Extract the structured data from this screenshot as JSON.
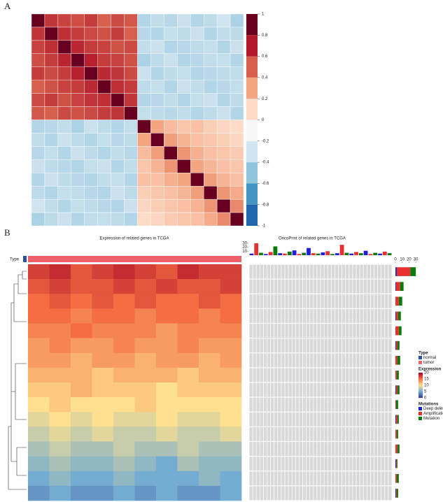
{
  "panel_labels": [
    "A",
    "B"
  ],
  "chart_data": [
    {
      "type": "correlation",
      "matrix": [
        [
          1,
          0.72,
          0.68,
          0.65,
          0.7,
          0.6,
          0.66,
          0.62,
          -0.3,
          -0.25,
          -0.28,
          -0.22,
          -0.3,
          -0.26,
          -0.2,
          -0.32
        ],
        [
          0.72,
          1,
          0.74,
          0.7,
          0.66,
          0.64,
          0.7,
          0.6,
          -0.28,
          -0.3,
          -0.24,
          -0.26,
          -0.22,
          -0.3,
          -0.25,
          -0.27
        ],
        [
          0.68,
          0.74,
          1,
          0.76,
          0.7,
          0.68,
          0.64,
          0.66,
          -0.25,
          -0.22,
          -0.3,
          -0.28,
          -0.26,
          -0.24,
          -0.3,
          -0.22
        ],
        [
          0.65,
          0.7,
          0.76,
          1,
          0.78,
          0.7,
          0.68,
          0.64,
          -0.32,
          -0.26,
          -0.22,
          -0.3,
          -0.28,
          -0.25,
          -0.24,
          -0.3
        ],
        [
          0.7,
          0.66,
          0.7,
          0.78,
          1,
          0.75,
          0.72,
          0.66,
          -0.22,
          -0.3,
          -0.26,
          -0.24,
          -0.3,
          -0.28,
          -0.26,
          -0.25
        ],
        [
          0.6,
          0.64,
          0.68,
          0.7,
          0.75,
          1,
          0.74,
          0.7,
          -0.26,
          -0.24,
          -0.3,
          -0.22,
          -0.25,
          -0.3,
          -0.28,
          -0.24
        ],
        [
          0.66,
          0.7,
          0.64,
          0.68,
          0.72,
          0.74,
          1,
          0.72,
          -0.3,
          -0.28,
          -0.25,
          -0.3,
          -0.24,
          -0.22,
          -0.3,
          -0.26
        ],
        [
          0.62,
          0.6,
          0.66,
          0.64,
          0.66,
          0.7,
          0.72,
          1,
          -0.24,
          -0.26,
          -0.28,
          -0.25,
          -0.3,
          -0.26,
          -0.22,
          -0.3
        ],
        [
          -0.3,
          -0.28,
          -0.25,
          -0.32,
          -0.22,
          -0.26,
          -0.3,
          -0.24,
          1,
          0.4,
          0.32,
          0.28,
          0.3,
          0.25,
          0.22,
          0.2
        ],
        [
          -0.25,
          -0.3,
          -0.22,
          -0.26,
          -0.3,
          -0.24,
          -0.28,
          -0.26,
          0.4,
          1,
          0.42,
          0.35,
          0.3,
          0.28,
          0.25,
          0.22
        ],
        [
          -0.28,
          -0.24,
          -0.3,
          -0.22,
          -0.26,
          -0.3,
          -0.25,
          -0.28,
          0.32,
          0.42,
          1,
          0.45,
          0.36,
          0.3,
          0.28,
          0.26
        ],
        [
          -0.22,
          -0.26,
          -0.28,
          -0.3,
          -0.24,
          -0.22,
          -0.3,
          -0.25,
          0.28,
          0.35,
          0.45,
          1,
          0.4,
          0.34,
          0.3,
          0.28
        ],
        [
          -0.3,
          -0.22,
          -0.26,
          -0.28,
          -0.3,
          -0.25,
          -0.24,
          -0.3,
          0.3,
          0.3,
          0.36,
          0.4,
          1,
          0.42,
          0.35,
          0.3
        ],
        [
          -0.26,
          -0.3,
          -0.24,
          -0.25,
          -0.28,
          -0.3,
          -0.22,
          -0.26,
          0.25,
          0.28,
          0.3,
          0.34,
          0.42,
          1,
          0.45,
          0.38
        ],
        [
          -0.2,
          -0.25,
          -0.3,
          -0.24,
          -0.26,
          -0.28,
          -0.3,
          -0.22,
          0.22,
          0.25,
          0.28,
          0.3,
          0.35,
          0.45,
          1,
          0.48
        ],
        [
          -0.32,
          -0.27,
          -0.22,
          -0.3,
          -0.25,
          -0.24,
          -0.26,
          -0.3,
          0.2,
          0.22,
          0.26,
          0.28,
          0.3,
          0.38,
          0.48,
          1
        ]
      ],
      "clim": [
        -1,
        1
      ],
      "cticks": [
        1,
        0.8,
        0.6,
        0.4,
        0.2,
        0,
        -0.2,
        -0.4,
        -0.6,
        -0.8,
        -1
      ],
      "colors": [
        "#67001f",
        "#b2182b",
        "#d6604d",
        "#f4a582",
        "#fddbc7",
        "#f7f7f7",
        "#d1e5f0",
        "#92c5de",
        "#4393c3",
        "#2166ac",
        "#053061"
      ]
    },
    {
      "type": "expression",
      "title": "Expression of related genes in TCGA",
      "type_label": "Type",
      "matrix": [
        [
          17,
          18,
          16,
          17,
          18,
          17,
          16,
          18,
          17,
          17
        ],
        [
          16,
          17,
          16,
          16,
          17,
          16,
          17,
          16,
          16,
          17
        ],
        [
          15,
          16,
          15,
          16,
          15,
          16,
          15,
          15,
          16,
          15
        ],
        [
          15,
          15,
          14,
          15,
          15,
          14,
          15,
          15,
          14,
          15
        ],
        [
          14,
          14,
          15,
          14,
          14,
          14,
          13,
          14,
          14,
          14
        ],
        [
          13,
          14,
          13,
          13,
          14,
          13,
          13,
          14,
          13,
          13
        ],
        [
          13,
          13,
          12,
          13,
          13,
          12,
          13,
          13,
          12,
          13
        ],
        [
          12,
          12,
          12,
          11,
          12,
          12,
          12,
          11,
          12,
          12
        ],
        [
          11,
          11,
          12,
          11,
          11,
          11,
          10,
          11,
          11,
          11
        ],
        [
          10,
          11,
          10,
          10,
          10,
          11,
          10,
          10,
          10,
          10
        ],
        [
          9,
          10,
          9,
          10,
          9,
          9,
          10,
          9,
          9,
          10
        ],
        [
          8,
          9,
          8,
          9,
          8,
          8,
          9,
          8,
          8,
          9
        ],
        [
          7,
          8,
          7,
          7,
          8,
          7,
          7,
          8,
          7,
          7
        ],
        [
          6,
          7,
          6,
          6,
          7,
          6,
          5,
          7,
          6,
          6
        ],
        [
          5,
          6,
          5,
          5,
          6,
          5,
          5,
          5,
          6,
          5
        ],
        [
          4,
          5,
          4,
          4,
          5,
          4,
          5,
          4,
          4,
          5
        ]
      ],
      "legend_title": "Expression",
      "cticks": [
        20,
        15,
        10,
        5,
        0
      ],
      "colors": [
        "#a50026",
        "#f46d43",
        "#fee090",
        "#74add1",
        "#313695"
      ]
    },
    {
      "type": "oncoprint",
      "title": "OncoPrint of related genes in TCGA",
      "sample_totals": [
        4,
        30,
        6,
        3,
        8,
        22,
        5,
        4,
        9,
        12,
        3,
        6,
        18,
        5,
        4,
        7,
        10,
        3,
        5,
        26,
        6,
        4,
        8,
        5,
        11,
        3,
        6,
        4,
        9,
        5
      ],
      "top_ylim": [
        0,
        35
      ],
      "top_yticks": [
        10,
        20,
        30
      ],
      "right_xlim": [
        0,
        35
      ],
      "right_xticks": [
        0,
        10,
        20,
        30
      ],
      "legend_title": "Mutations",
      "series": [
        {
          "name": "Deep deletion",
          "color": "#2020d8",
          "values": [
            2,
            1,
            0,
            1,
            0,
            1,
            0,
            0,
            1,
            0,
            1,
            0,
            0,
            1,
            0,
            1
          ]
        },
        {
          "name": "Amplification",
          "color": "#e83030",
          "values": [
            20,
            6,
            5,
            3,
            5,
            2,
            3,
            2,
            2,
            1,
            2,
            2,
            3,
            1,
            2,
            1
          ]
        },
        {
          "name": "Mutation",
          "color": "#0a7a0a",
          "values": [
            8,
            5,
            5,
            4,
            4,
            3,
            4,
            3,
            3,
            3,
            2,
            2,
            3,
            1,
            3,
            2
          ]
        }
      ]
    }
  ],
  "type_legend": {
    "title": "Type",
    "items": [
      {
        "name": "normal",
        "color": "#2f4f9f"
      },
      {
        "name": "tumor",
        "color": "#f0606a"
      }
    ]
  }
}
